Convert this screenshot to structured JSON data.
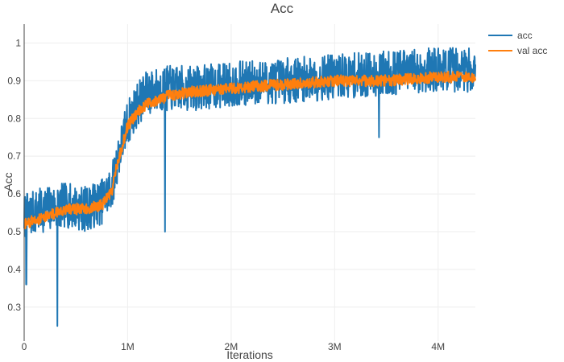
{
  "chart_data": {
    "type": "line",
    "title": "Acc",
    "xlabel": "Iterations",
    "ylabel": "Acc",
    "xlim": [
      0,
      4360000
    ],
    "ylim": [
      0.21,
      1.05
    ],
    "grid": true,
    "legend_position": "top-right",
    "x_ticks": [
      {
        "value": 0,
        "label": "0"
      },
      {
        "value": 1000000,
        "label": "1M"
      },
      {
        "value": 2000000,
        "label": "2M"
      },
      {
        "value": 3000000,
        "label": "3M"
      },
      {
        "value": 4000000,
        "label": "4M"
      }
    ],
    "y_ticks": [
      {
        "value": 0.3,
        "label": "0.3"
      },
      {
        "value": 0.4,
        "label": "0.4"
      },
      {
        "value": 0.5,
        "label": "0.5"
      },
      {
        "value": 0.6,
        "label": "0.6"
      },
      {
        "value": 0.7,
        "label": "0.7"
      },
      {
        "value": 0.8,
        "label": "0.8"
      },
      {
        "value": 0.9,
        "label": "0.9"
      },
      {
        "value": 1.0,
        "label": "1"
      }
    ],
    "series": [
      {
        "name": "acc",
        "color": "#1f77b4",
        "trend": {
          "x": [
            0,
            200000,
            400000,
            600000,
            750000,
            850000,
            900000,
            1000000,
            1100000,
            1200000,
            1400000,
            1600000,
            2000000,
            2500000,
            3000000,
            3500000,
            4000000,
            4360000
          ],
          "y": [
            0.54,
            0.56,
            0.57,
            0.56,
            0.58,
            0.62,
            0.69,
            0.79,
            0.84,
            0.87,
            0.88,
            0.88,
            0.89,
            0.9,
            0.91,
            0.92,
            0.93,
            0.93
          ]
        },
        "band_halfwidth": 0.06,
        "spikes": [
          {
            "x": 20000,
            "y": 0.36
          },
          {
            "x": 320000,
            "y": 0.25
          },
          {
            "x": 1360000,
            "y": 0.5
          },
          {
            "x": 3430000,
            "y": 0.75
          }
        ]
      },
      {
        "name": "val acc",
        "color": "#ff7f0e",
        "trend": {
          "x": [
            0,
            200000,
            400000,
            600000,
            750000,
            850000,
            900000,
            1000000,
            1100000,
            1200000,
            1400000,
            1600000,
            2000000,
            2500000,
            3000000,
            3500000,
            4000000,
            4360000
          ],
          "y": [
            0.52,
            0.54,
            0.56,
            0.56,
            0.57,
            0.61,
            0.68,
            0.78,
            0.82,
            0.84,
            0.86,
            0.87,
            0.88,
            0.89,
            0.9,
            0.9,
            0.91,
            0.91
          ]
        },
        "band_halfwidth": 0.015,
        "spikes": []
      }
    ]
  }
}
